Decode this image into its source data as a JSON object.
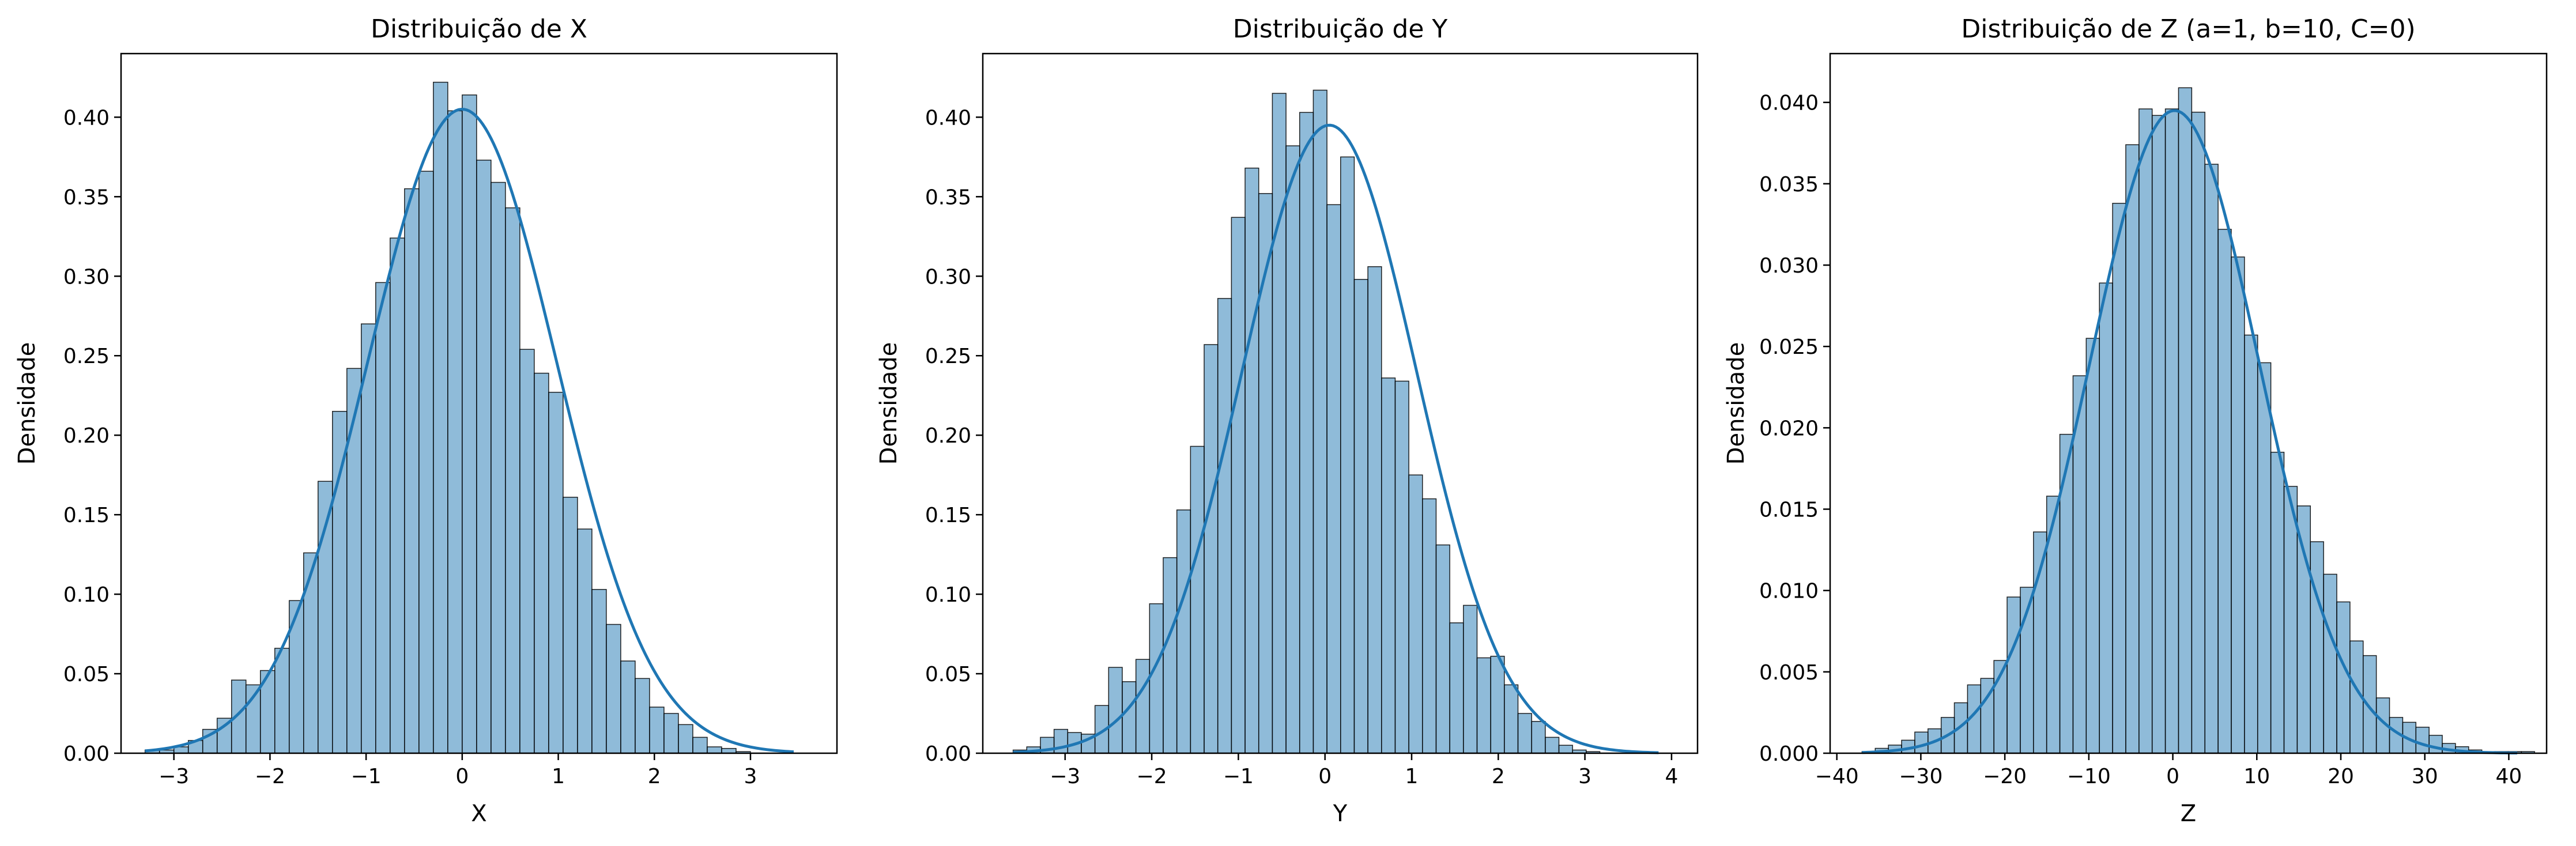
{
  "chart_data": [
    {
      "type": "bar",
      "title": "Distribuição de X",
      "xlabel": "X",
      "ylabel": "Densidade",
      "xlim": [
        -3.55,
        3.9
      ],
      "ylim": [
        0,
        0.44
      ],
      "xticks": [
        -3,
        -2,
        -1,
        0,
        1,
        2,
        3
      ],
      "xtick_labels": [
        "−3",
        "−2",
        "−1",
        "0",
        "1",
        "2",
        "3"
      ],
      "yticks": [
        0,
        0.05,
        0.1,
        0.15,
        0.2,
        0.25,
        0.3,
        0.35,
        0.4
      ],
      "ytick_labels": [
        "0.00",
        "0.05",
        "0.10",
        "0.15",
        "0.20",
        "0.25",
        "0.30",
        "0.35",
        "0.40"
      ],
      "bin_start": -3.3,
      "bin_width": 0.15,
      "values": [
        0.002,
        0.002,
        0.004,
        0.008,
        0.015,
        0.022,
        0.046,
        0.043,
        0.052,
        0.066,
        0.096,
        0.126,
        0.171,
        0.215,
        0.242,
        0.27,
        0.296,
        0.324,
        0.355,
        0.366,
        0.422,
        0.404,
        0.414,
        0.373,
        0.359,
        0.343,
        0.254,
        0.239,
        0.227,
        0.161,
        0.141,
        0.103,
        0.081,
        0.058,
        0.047,
        0.029,
        0.025,
        0.018,
        0.01,
        0.004,
        0.003,
        0.001
      ],
      "kde": {
        "mean": 0.0,
        "sd": 0.985,
        "from": -3.3,
        "to": 3.45
      },
      "grid": false,
      "legend": false
    },
    {
      "type": "bar",
      "title": "Distribuição de Y",
      "xlabel": "Y",
      "ylabel": "Densidade",
      "xlim": [
        -3.95,
        4.3
      ],
      "ylim": [
        0,
        0.44
      ],
      "xticks": [
        -3,
        -2,
        -1,
        0,
        1,
        2,
        3,
        4
      ],
      "xtick_labels": [
        "−3",
        "−2",
        "−1",
        "0",
        "1",
        "2",
        "3",
        "4"
      ],
      "yticks": [
        0,
        0.05,
        0.1,
        0.15,
        0.2,
        0.25,
        0.3,
        0.35,
        0.4
      ],
      "ytick_labels": [
        "0.00",
        "0.05",
        "0.10",
        "0.15",
        "0.20",
        "0.25",
        "0.30",
        "0.35",
        "0.40"
      ],
      "bin_start": -3.6,
      "bin_width": 0.1575,
      "values": [
        0.002,
        0.004,
        0.01,
        0.015,
        0.013,
        0.012,
        0.03,
        0.054,
        0.045,
        0.059,
        0.094,
        0.123,
        0.153,
        0.193,
        0.257,
        0.286,
        0.337,
        0.368,
        0.352,
        0.415,
        0.382,
        0.403,
        0.417,
        0.345,
        0.375,
        0.298,
        0.306,
        0.236,
        0.234,
        0.175,
        0.16,
        0.131,
        0.082,
        0.093,
        0.06,
        0.061,
        0.043,
        0.025,
        0.02,
        0.01,
        0.005,
        0.002,
        0.001,
        0.0
      ],
      "kde": {
        "mean": 0.05,
        "sd": 1.01,
        "from": -3.6,
        "to": 3.85
      },
      "grid": false,
      "legend": false
    },
    {
      "type": "bar",
      "title": "Distribuição de Z (a=1, b=10, C=0)",
      "xlabel": "Z",
      "ylabel": "Densidade",
      "xlim": [
        -40.8,
        44.5
      ],
      "ylim": [
        0,
        0.043
      ],
      "xticks": [
        -40,
        -30,
        -20,
        -10,
        0,
        10,
        20,
        30,
        40
      ],
      "xtick_labels": [
        "−40",
        "−30",
        "−20",
        "−10",
        "0",
        "10",
        "20",
        "30",
        "40"
      ],
      "yticks": [
        0,
        0.005,
        0.01,
        0.015,
        0.02,
        0.025,
        0.03,
        0.035,
        0.04
      ],
      "ytick_labels": [
        "0.000",
        "0.005",
        "0.010",
        "0.015",
        "0.020",
        "0.025",
        "0.030",
        "0.035",
        "0.040"
      ],
      "bin_start": -37.0,
      "bin_width": 1.57,
      "values": [
        0.0001,
        0.0003,
        0.0005,
        0.0008,
        0.0013,
        0.0015,
        0.0022,
        0.0031,
        0.0042,
        0.0046,
        0.0057,
        0.0096,
        0.0102,
        0.0136,
        0.0158,
        0.0196,
        0.0232,
        0.0255,
        0.0289,
        0.0338,
        0.0374,
        0.0396,
        0.0392,
        0.0396,
        0.0409,
        0.0394,
        0.0362,
        0.0322,
        0.0305,
        0.0257,
        0.024,
        0.0185,
        0.0164,
        0.0152,
        0.013,
        0.011,
        0.0093,
        0.0069,
        0.006,
        0.0034,
        0.0022,
        0.0019,
        0.0016,
        0.0011,
        0.0006,
        0.0004,
        0.0002,
        0.0001,
        0.0001,
        0.0001,
        0.0001
      ],
      "kde": {
        "mean": 0.2,
        "sd": 10.1,
        "from": -37.0,
        "to": 41.0
      },
      "grid": false,
      "legend": false
    }
  ]
}
